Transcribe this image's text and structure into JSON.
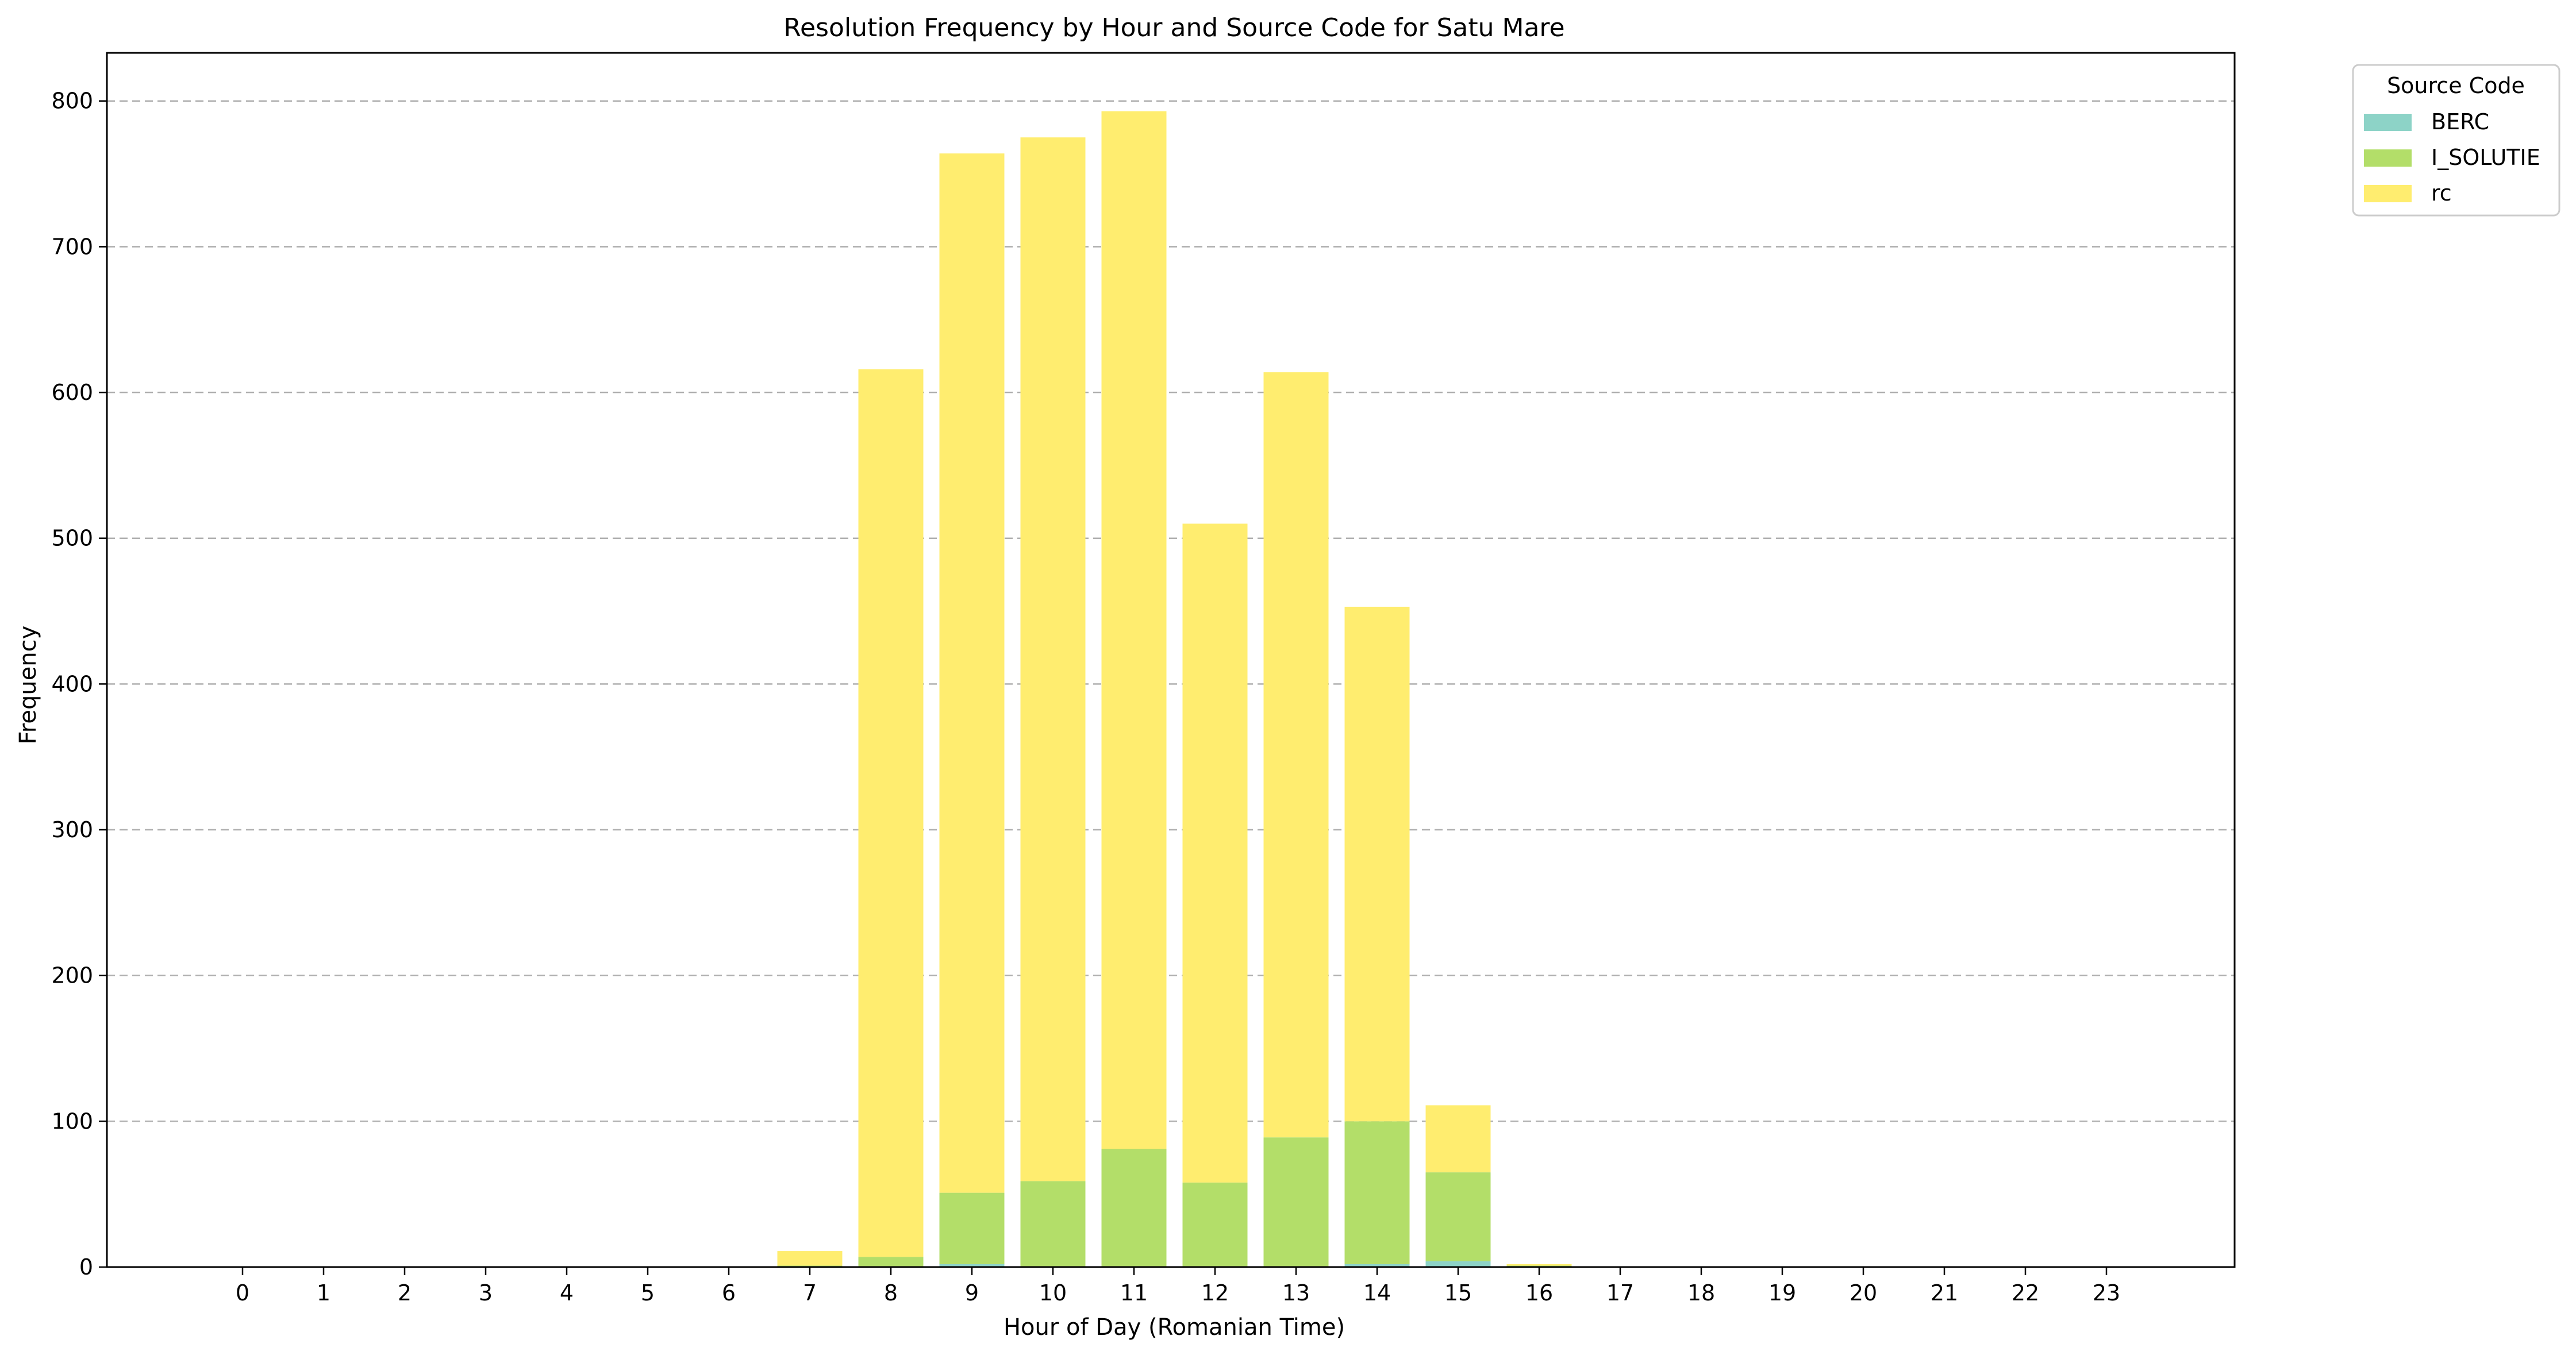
{
  "chart_data": {
    "type": "bar",
    "stacked": true,
    "title": "Resolution Frequency by Hour and Source Code for Satu Mare",
    "xlabel": "Hour of Day (Romanian Time)",
    "ylabel": "Frequency",
    "categories": [
      "0",
      "1",
      "2",
      "3",
      "4",
      "5",
      "6",
      "7",
      "8",
      "9",
      "10",
      "11",
      "12",
      "13",
      "14",
      "15",
      "16",
      "17",
      "18",
      "19",
      "20",
      "21",
      "22",
      "23"
    ],
    "yticks": [
      "0",
      "100",
      "200",
      "300",
      "400",
      "500",
      "600",
      "700",
      "800"
    ],
    "ylim": [
      0,
      833
    ],
    "grid": "y-dashed",
    "legend": {
      "title": "Source Code",
      "placement": "outside-top-right"
    },
    "series": [
      {
        "name": "BERC",
        "color": "#8dd3c7",
        "values": [
          0,
          0,
          0,
          0,
          0,
          0,
          0,
          0,
          0,
          2,
          0,
          0,
          0,
          0,
          2,
          4,
          0,
          0,
          0,
          0,
          0,
          0,
          0,
          0
        ]
      },
      {
        "name": "I_SOLUTIE",
        "color": "#b3de69",
        "values": [
          0,
          0,
          0,
          0,
          0,
          0,
          0,
          1,
          7,
          49,
          59,
          81,
          58,
          89,
          98,
          61,
          1,
          0,
          0,
          0,
          0,
          0,
          0,
          0
        ]
      },
      {
        "name": "rc",
        "color": "#ffed6f",
        "values": [
          0,
          0,
          0,
          0,
          0,
          0,
          0,
          10,
          609,
          713,
          716,
          712,
          452,
          525,
          353,
          46,
          1,
          0,
          0,
          0,
          0,
          0,
          0,
          0
        ]
      }
    ]
  }
}
